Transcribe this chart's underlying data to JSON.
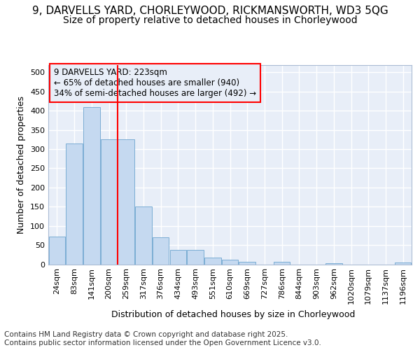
{
  "title_line1": "9, DARVELLS YARD, CHORLEYWOOD, RICKMANSWORTH, WD3 5QG",
  "title_line2": "Size of property relative to detached houses in Chorleywood",
  "xlabel": "Distribution of detached houses by size in Chorleywood",
  "ylabel": "Number of detached properties",
  "footer_line1": "Contains HM Land Registry data © Crown copyright and database right 2025.",
  "footer_line2": "Contains public sector information licensed under the Open Government Licence v3.0.",
  "annotation_line1": "9 DARVELLS YARD: 223sqm",
  "annotation_line2": "← 65% of detached houses are smaller (940)",
  "annotation_line3": "34% of semi-detached houses are larger (492) →",
  "bar_color": "#c5d9f0",
  "bar_edge_color": "#7badd4",
  "redline_x": 3.5,
  "categories": [
    "24sqm",
    "83sqm",
    "141sqm",
    "200sqm",
    "259sqm",
    "317sqm",
    "376sqm",
    "434sqm",
    "493sqm",
    "551sqm",
    "610sqm",
    "669sqm",
    "727sqm",
    "786sqm",
    "844sqm",
    "903sqm",
    "962sqm",
    "1020sqm",
    "1079sqm",
    "1137sqm",
    "1196sqm"
  ],
  "values": [
    72,
    314,
    410,
    325,
    325,
    150,
    70,
    37,
    37,
    17,
    11,
    7,
    0,
    6,
    0,
    0,
    3,
    0,
    0,
    0,
    4
  ],
  "ylim": [
    0,
    520
  ],
  "yticks": [
    0,
    50,
    100,
    150,
    200,
    250,
    300,
    350,
    400,
    450,
    500
  ],
  "background_color": "#ffffff",
  "plot_bg_color": "#e8eef8",
  "grid_color": "#ffffff",
  "title_fontsize": 11,
  "subtitle_fontsize": 10,
  "axis_label_fontsize": 9,
  "tick_fontsize": 8,
  "footer_fontsize": 7.5,
  "annotation_fontsize": 8.5
}
